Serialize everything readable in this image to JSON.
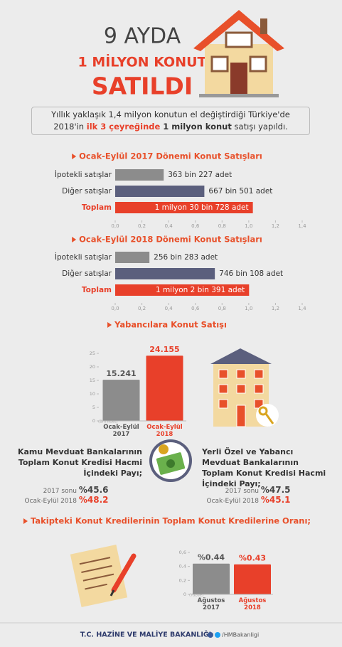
{
  "header": {
    "line1": "9 AYDA",
    "line2": "1 MİLYON KONUT",
    "line3": "SATILDI"
  },
  "intro": {
    "part1": "Yıllık yaklaşık 1,4 milyon konutun el değiştirdiği Türkiye'de 2018'in ",
    "part2": "ilk 3 çeyreğinde",
    "part3": " 1 milyon konut",
    "part4": " satışı yapıldı."
  },
  "chart_data": [
    {
      "type": "hbar",
      "title": "Ocak-Eylül 2017 Dönemi Konut Satışları",
      "categories": [
        "İpotekli satışlar",
        "Diğer satışlar",
        "Toplam"
      ],
      "values": [
        0.363227,
        0.667501,
        1.030728
      ],
      "value_labels": [
        "363 bin 227 adet",
        "667 bin 501 adet",
        "1 milyon 30 bin 728 adet"
      ],
      "colors": [
        "#8c8c8c",
        "#5b5f7d",
        "#e8402a"
      ],
      "label_colors": [
        "#333333",
        "#333333",
        "#e8402a"
      ],
      "xlim": [
        0,
        1.4
      ],
      "xticks": [
        {
          "value": 0,
          "label": "0,0"
        },
        {
          "value": 0.2,
          "label": "0,2"
        },
        {
          "value": 0.4,
          "label": "0,4"
        },
        {
          "value": 0.6,
          "label": "0,6"
        },
        {
          "value": 0.8,
          "label": "0,8"
        },
        {
          "value": 1,
          "label": "1,0"
        },
        {
          "value": 1.2,
          "label": "1,2"
        },
        {
          "value": 1.4,
          "label": "1,4"
        }
      ]
    },
    {
      "type": "hbar",
      "title": "Ocak-Eylül 2018 Dönemi Konut Satışları",
      "categories": [
        "İpotekli satışlar",
        "Diğer satışlar",
        "Toplam"
      ],
      "values": [
        0.256283,
        0.746108,
        1.002391
      ],
      "value_labels": [
        "256 bin 283 adet",
        "746 bin 108 adet",
        "1 milyon 2 bin 391 adet"
      ],
      "colors": [
        "#8c8c8c",
        "#5b5f7d",
        "#e8402a"
      ],
      "label_colors": [
        "#333333",
        "#333333",
        "#e8402a"
      ],
      "xlim": [
        0,
        1.4
      ],
      "xticks": [
        {
          "value": 0,
          "label": "0,0"
        },
        {
          "value": 0.2,
          "label": "0,2"
        },
        {
          "value": 0.4,
          "label": "0,4"
        },
        {
          "value": 0.6,
          "label": "0,6"
        },
        {
          "value": 0.8,
          "label": "0,8"
        },
        {
          "value": 1,
          "label": "1,0"
        },
        {
          "value": 1.2,
          "label": "1,2"
        },
        {
          "value": 1.4,
          "label": "1,4"
        }
      ]
    },
    {
      "type": "vbar",
      "title": "Yabancılara Konut Satışı",
      "categories": [
        "Ocak-Eylül 2017",
        "Ocak-Eylül 2018"
      ],
      "values": [
        15.241,
        24.155
      ],
      "value_labels": [
        "15.241",
        "24.155"
      ],
      "colors": [
        "#8c8c8c",
        "#e8402a"
      ],
      "label_colors": [
        "#555555",
        "#e8402a"
      ],
      "ylabel": "(Bin Adet)",
      "ylim": [
        0,
        25
      ],
      "yticks": [
        0,
        5,
        10,
        15,
        20,
        25
      ]
    },
    {
      "type": "vbar",
      "title": "Takipteki Konut Kredilerinin Toplam Konut Kredilerine Oranı;",
      "categories": [
        "Ağustos 2017",
        "Ağustos 2018"
      ],
      "values": [
        0.44,
        0.43
      ],
      "value_labels": [
        "%0.44",
        "%0.43"
      ],
      "colors": [
        "#8c8c8c",
        "#e8402a"
      ],
      "label_colors": [
        "#555555",
        "#e8402a"
      ],
      "ylabel": "(Yüzde)",
      "ylim": [
        0,
        0.6
      ],
      "yticks": [
        0,
        {
          "value": 0.2,
          "label": "0,2"
        },
        {
          "value": 0.4,
          "label": "0,4"
        },
        {
          "value": 0.6,
          "label": "0,6"
        }
      ]
    }
  ],
  "deposit": {
    "left": {
      "text": "Kamu Mevduat Bankalarının Toplam Konut Kredisi Hacmi İçindeki Payı;",
      "rows": [
        {
          "label": "2017 sonu",
          "value": "%45.6"
        },
        {
          "label": "Ocak-Eylül 2018",
          "value": "%48.2"
        }
      ]
    },
    "right": {
      "text": "Yerli Özel ve Yabancı Mevduat Bankalarının Toplam Konut Kredisi Hacmi İçindeki Payı;",
      "rows": [
        {
          "label": "2017 sonu",
          "value": "%47.5"
        },
        {
          "label": "Ocak-Eylül 2018",
          "value": "%45.1"
        }
      ]
    }
  },
  "footer": {
    "ministry": "T.C. HAZİNE VE MALİYE BAKANLIĞI",
    "handle": "/HMBakanligi"
  }
}
